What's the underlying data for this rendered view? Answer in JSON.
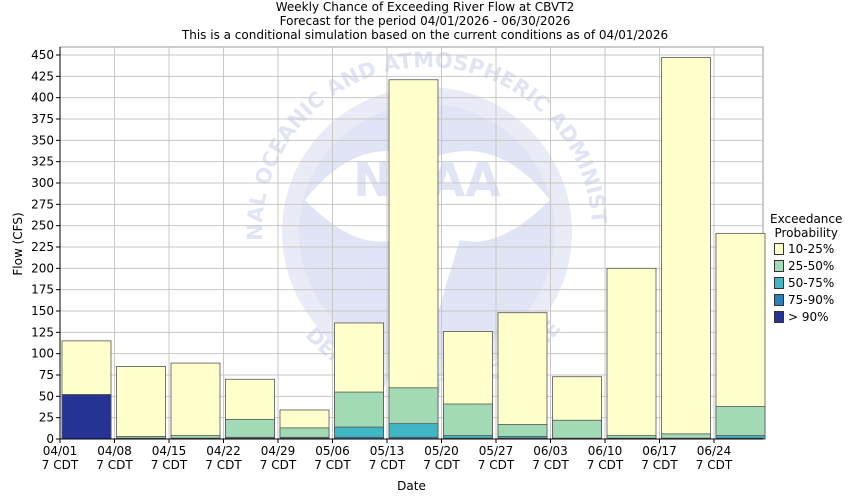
{
  "header": {
    "line1": "Weekly Chance of Exceeding River Flow at CBVT2",
    "line2": "Forecast for the period 04/01/2026 - 06/30/2026",
    "line3": "This is a conditional simulation based on the current conditions as of 04/01/2026"
  },
  "watermark": {
    "ring_text": "NATIONAL OCEANIC AND ATMOSPHERIC ADMINISTRATION",
    "logo_text": "NOAA",
    "bottom_text": "U.S. DEPARTMENT OF COMMERCE"
  },
  "legend": {
    "title1": "Exceedance",
    "title2": "Probability",
    "items": [
      {
        "label": "10-25%",
        "color": "#ffffcc"
      },
      {
        "label": "25-50%",
        "color": "#a1dab4"
      },
      {
        "label": "50-75%",
        "color": "#41b6c4"
      },
      {
        "label": "75-90%",
        "color": "#2c7fb8"
      },
      {
        "label": "> 90%",
        "color": "#253494"
      }
    ]
  },
  "chart_data": {
    "type": "bar",
    "title": "Weekly Chance of Exceeding River Flow at CBVT2",
    "xlabel": "Date",
    "ylabel": "Flow (CFS)",
    "ylim": [
      0,
      450
    ],
    "yticks": [
      0,
      25,
      50,
      75,
      100,
      125,
      150,
      175,
      200,
      225,
      250,
      275,
      300,
      325,
      350,
      375,
      400,
      425,
      450
    ],
    "grid": true,
    "legend_position": "right",
    "categories": [
      "04/01",
      "04/08",
      "04/15",
      "04/22",
      "04/29",
      "05/06",
      "05/13",
      "05/20",
      "05/27",
      "06/03",
      "06/10",
      "06/17",
      "06/24"
    ],
    "category_sub": "7 CDT",
    "series": [
      {
        "name": "10-25%",
        "color": "#ffffcc",
        "values": [
          115,
          85,
          89,
          70,
          34,
          136,
          421,
          126,
          148,
          73,
          200,
          447,
          241
        ]
      },
      {
        "name": "25-50%",
        "color": "#a1dab4",
        "values": [
          52,
          3,
          4,
          23,
          13,
          55,
          60,
          41,
          17,
          22,
          4,
          6,
          38
        ]
      },
      {
        "name": "50-75%",
        "color": "#41b6c4",
        "values": [
          52,
          1,
          1,
          2,
          2,
          14,
          18,
          4,
          3,
          1,
          1,
          1,
          4
        ]
      },
      {
        "name": "75-90%",
        "color": "#2c7fb8",
        "values": [
          52,
          0,
          0,
          1,
          1,
          2,
          2,
          1,
          1,
          0,
          0,
          0,
          1
        ]
      },
      {
        "name": "> 90%",
        "color": "#253494",
        "values": [
          52,
          0,
          0,
          0,
          0,
          0,
          0,
          0,
          0,
          0,
          0,
          0,
          0
        ]
      }
    ]
  }
}
